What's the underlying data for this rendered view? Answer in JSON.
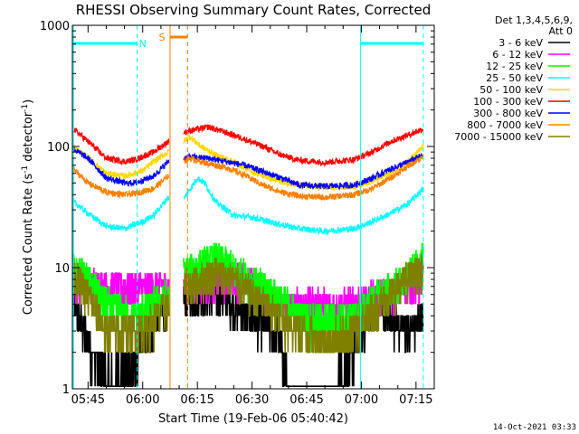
{
  "title": "RHESSI Observing Summary Count Rates, Corrected",
  "footer_date": "14-Oct-2021 03:33",
  "chart_data": {
    "type": "line",
    "title": "RHESSI Observing Summary Count Rates, Corrected",
    "xlabel": "Start Time (19-Feb-06 05:40:42)",
    "ylabel": "Corrected Count Rate (s⁻¹ detector⁻¹)",
    "ylabel_main": "Corrected Count Rate (s",
    "ylabel_sup1": "-1",
    "ylabel_mid": " detector",
    "ylabel_sup2": "-1",
    "ylabel_end": ")",
    "y_scale": "log",
    "ylim": [
      1,
      1000
    ],
    "xlim_minutes": [
      340.7,
      440
    ],
    "x_ticks": [
      {
        "t": 345,
        "label": "05:45"
      },
      {
        "t": 360,
        "label": "06:00"
      },
      {
        "t": 375,
        "label": "06:15"
      },
      {
        "t": 390,
        "label": "06:30"
      },
      {
        "t": 405,
        "label": "06:45"
      },
      {
        "t": 420,
        "label": "07:00"
      },
      {
        "t": 435,
        "label": "07:15"
      }
    ],
    "y_ticks": [
      {
        "v": 1,
        "label": "1"
      },
      {
        "v": 10,
        "label": "10"
      },
      {
        "v": 100,
        "label": "100"
      },
      {
        "v": 1000,
        "label": "1000"
      }
    ],
    "legend_placement": "right",
    "legend_header": [
      "Det 1,3,4,5,6,9,",
      "Att 0"
    ],
    "series": [
      {
        "name": "3 - 6 keV",
        "color": "#000000",
        "values": [
          [
            341,
            5
          ],
          [
            345,
            2.5
          ],
          [
            350,
            1.2
          ],
          [
            357,
            1.5
          ],
          [
            363,
            3.5
          ],
          [
            367,
            5
          ],
          [
            371,
            5.5
          ],
          [
            380,
            6
          ],
          [
            385,
            5
          ],
          [
            390,
            4
          ],
          [
            397,
            3
          ],
          [
            400,
            1
          ],
          [
            407,
            1
          ],
          [
            412,
            1
          ],
          [
            418,
            2
          ],
          [
            423,
            5
          ],
          [
            428,
            4
          ],
          [
            433,
            3
          ],
          [
            437,
            4
          ]
        ]
      },
      {
        "name": "6 - 12 keV",
        "color": "#ff00ff",
        "values": [
          [
            341,
            8
          ],
          [
            350,
            7
          ],
          [
            357,
            7
          ],
          [
            363,
            7
          ],
          [
            367,
            7
          ],
          [
            371,
            7.5
          ],
          [
            380,
            8
          ],
          [
            385,
            8.5
          ],
          [
            388,
            8
          ],
          [
            392,
            7
          ],
          [
            397,
            5
          ],
          [
            403,
            5
          ],
          [
            410,
            5
          ],
          [
            418,
            5
          ],
          [
            425,
            6
          ],
          [
            432,
            7
          ],
          [
            437,
            8
          ]
        ]
      },
      {
        "name": "12 - 25 keV",
        "color": "#00ff00",
        "values": [
          [
            341,
            10
          ],
          [
            345,
            8
          ],
          [
            350,
            5
          ],
          [
            357,
            4
          ],
          [
            363,
            5
          ],
          [
            367,
            6
          ],
          [
            371,
            9
          ],
          [
            380,
            12
          ],
          [
            385,
            10
          ],
          [
            390,
            8
          ],
          [
            397,
            6
          ],
          [
            403,
            4
          ],
          [
            410,
            3.5
          ],
          [
            418,
            4
          ],
          [
            425,
            6
          ],
          [
            432,
            8
          ],
          [
            437,
            12
          ]
        ]
      },
      {
        "name": "25 - 50 keV",
        "color": "#00ffff",
        "values": [
          [
            341,
            35
          ],
          [
            345,
            28
          ],
          [
            350,
            22
          ],
          [
            355,
            21
          ],
          [
            360,
            24
          ],
          [
            363,
            27
          ],
          [
            367,
            38
          ],
          [
            371,
            36
          ],
          [
            375,
            55
          ],
          [
            377,
            50
          ],
          [
            380,
            35
          ],
          [
            385,
            27
          ],
          [
            390,
            26
          ],
          [
            397,
            23
          ],
          [
            403,
            21
          ],
          [
            410,
            20
          ],
          [
            418,
            21
          ],
          [
            423,
            24
          ],
          [
            428,
            28
          ],
          [
            433,
            34
          ],
          [
            437,
            45
          ]
        ]
      },
      {
        "name": "50 - 100 keV",
        "color": "#ffd800",
        "values": [
          [
            341,
            100
          ],
          [
            345,
            80
          ],
          [
            350,
            60
          ],
          [
            355,
            57
          ],
          [
            360,
            63
          ],
          [
            363,
            75
          ],
          [
            367,
            90
          ],
          [
            371,
            110
          ],
          [
            373,
            120
          ],
          [
            376,
            100
          ],
          [
            380,
            85
          ],
          [
            385,
            75
          ],
          [
            390,
            62
          ],
          [
            397,
            52
          ],
          [
            403,
            48
          ],
          [
            410,
            46
          ],
          [
            418,
            47
          ],
          [
            423,
            52
          ],
          [
            428,
            60
          ],
          [
            433,
            75
          ],
          [
            437,
            100
          ]
        ]
      },
      {
        "name": "100 - 300 keV",
        "color": "#ff0000",
        "values": [
          [
            341,
            140
          ],
          [
            345,
            110
          ],
          [
            350,
            80
          ],
          [
            355,
            75
          ],
          [
            358,
            78
          ],
          [
            363,
            90
          ],
          [
            367,
            110
          ],
          [
            371,
            130
          ],
          [
            373,
            135
          ],
          [
            378,
            145
          ],
          [
            383,
            130
          ],
          [
            388,
            115
          ],
          [
            393,
            100
          ],
          [
            398,
            85
          ],
          [
            403,
            77
          ],
          [
            410,
            74
          ],
          [
            418,
            78
          ],
          [
            423,
            90
          ],
          [
            428,
            110
          ],
          [
            433,
            125
          ],
          [
            437,
            140
          ]
        ]
      },
      {
        "name": "300 - 800 keV",
        "color": "#0000ff",
        "values": [
          [
            341,
            95
          ],
          [
            345,
            80
          ],
          [
            350,
            55
          ],
          [
            355,
            50
          ],
          [
            358,
            50
          ],
          [
            363,
            57
          ],
          [
            367,
            75
          ],
          [
            371,
            80
          ],
          [
            373,
            82
          ],
          [
            378,
            80
          ],
          [
            383,
            75
          ],
          [
            388,
            70
          ],
          [
            393,
            62
          ],
          [
            398,
            55
          ],
          [
            403,
            48
          ],
          [
            410,
            47
          ],
          [
            418,
            48
          ],
          [
            423,
            55
          ],
          [
            428,
            65
          ],
          [
            433,
            75
          ],
          [
            437,
            85
          ]
        ]
      },
      {
        "name": "800 - 7000 keV",
        "color": "#ff8000",
        "values": [
          [
            341,
            65
          ],
          [
            345,
            50
          ],
          [
            350,
            42
          ],
          [
            355,
            40
          ],
          [
            358,
            41
          ],
          [
            363,
            45
          ],
          [
            367,
            57
          ],
          [
            371,
            75
          ],
          [
            373,
            80
          ],
          [
            378,
            72
          ],
          [
            383,
            67
          ],
          [
            388,
            58
          ],
          [
            393,
            48
          ],
          [
            398,
            42
          ],
          [
            403,
            39
          ],
          [
            410,
            38
          ],
          [
            418,
            40
          ],
          [
            423,
            45
          ],
          [
            428,
            55
          ],
          [
            433,
            70
          ],
          [
            437,
            82
          ]
        ]
      },
      {
        "name": "7000 - 15000 keV",
        "color": "#808000",
        "values": [
          [
            341,
            9
          ],
          [
            345,
            6
          ],
          [
            350,
            3
          ],
          [
            357,
            3
          ],
          [
            363,
            3.5
          ],
          [
            367,
            5
          ],
          [
            371,
            7
          ],
          [
            380,
            9
          ],
          [
            385,
            8
          ],
          [
            390,
            6
          ],
          [
            397,
            4
          ],
          [
            403,
            3
          ],
          [
            410,
            2.5
          ],
          [
            418,
            3
          ],
          [
            425,
            5
          ],
          [
            432,
            8
          ],
          [
            437,
            10
          ]
        ]
      }
    ],
    "gaps": [
      [
        367.2,
        371.2
      ]
    ],
    "annotations": {
      "night_label": "N",
      "saa_label": "S",
      "night_bars": [
        [
          341,
          358.5
        ],
        [
          419.8,
          437
        ]
      ],
      "saa_bar": [
        367.5,
        372.3
      ],
      "night_lines_solid": [
        341,
        419.8
      ],
      "night_lines_dashed": [
        358.5,
        437
      ],
      "saa_line_solid": 367.5,
      "saa_line_dashed": 372.3
    }
  }
}
